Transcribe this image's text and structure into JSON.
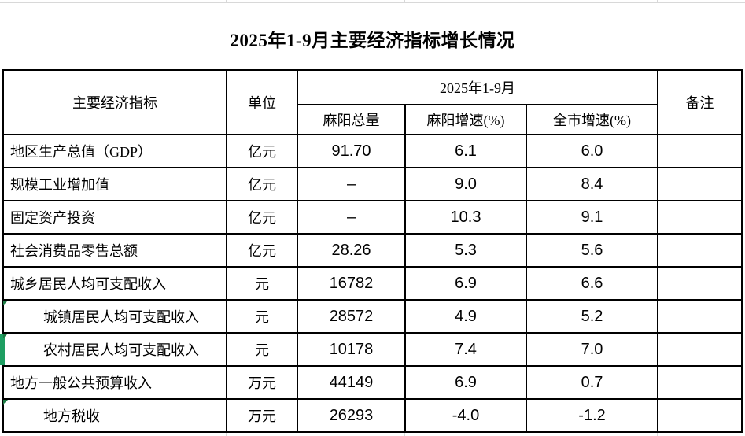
{
  "title": "2025年1-9月主要经济指标增长情况",
  "table": {
    "header": {
      "indicator": "主要经济指标",
      "unit": "单位",
      "period_group": "2025年1-9月",
      "sub_columns": [
        "麻阳总量",
        "麻阳增速(%)",
        "全市增速(%)"
      ],
      "remarks": "备注"
    },
    "rows": [
      {
        "indicator": "地区生产总值（GDP）",
        "unit": "亿元",
        "total": "91.70",
        "local_growth": "6.1",
        "city_growth": "6.0",
        "remark": "",
        "indent": false,
        "error_marker": false,
        "green_left_bar": false
      },
      {
        "indicator": "规模工业增加值",
        "unit": "亿元",
        "total": "–",
        "local_growth": "9.0",
        "city_growth": "8.4",
        "remark": "",
        "indent": false,
        "error_marker": false,
        "green_left_bar": false
      },
      {
        "indicator": "固定资产投资",
        "unit": "亿元",
        "total": "–",
        "local_growth": "10.3",
        "city_growth": "9.1",
        "remark": "",
        "indent": false,
        "error_marker": false,
        "green_left_bar": false
      },
      {
        "indicator": "社会消费品零售总额",
        "unit": "亿元",
        "total": "28.26",
        "local_growth": "5.3",
        "city_growth": "5.6",
        "remark": "",
        "indent": false,
        "error_marker": false,
        "green_left_bar": false
      },
      {
        "indicator": "城乡居民人均可支配收入",
        "unit": "元",
        "total": "16782",
        "local_growth": "6.9",
        "city_growth": "6.6",
        "remark": "",
        "indent": false,
        "error_marker": false,
        "green_left_bar": false
      },
      {
        "indicator": "城镇居民人均可支配收入",
        "unit": "元",
        "total": "28572",
        "local_growth": "4.9",
        "city_growth": "5.2",
        "remark": "",
        "indent": true,
        "error_marker": true,
        "green_left_bar": false
      },
      {
        "indicator": "农村居民人均可支配收入",
        "unit": "元",
        "total": "10178",
        "local_growth": "7.4",
        "city_growth": "7.0",
        "remark": "",
        "indent": true,
        "error_marker": true,
        "green_left_bar": true
      },
      {
        "indicator": "地方一般公共预算收入",
        "unit": "万元",
        "total": "44149",
        "local_growth": "6.9",
        "city_growth": "0.7",
        "remark": "",
        "indent": false,
        "error_marker": false,
        "green_left_bar": false
      },
      {
        "indicator": "地方税收",
        "unit": "万元",
        "total": "26293",
        "local_growth": "-4.0",
        "city_growth": "-1.2",
        "remark": "",
        "indent": true,
        "error_marker": true,
        "green_left_bar": false
      }
    ]
  },
  "colors": {
    "border": "#000000",
    "gridline": "#d8d8d8",
    "error_triangle": "#1e7b45",
    "green_left_bar": "#1e9e62"
  }
}
